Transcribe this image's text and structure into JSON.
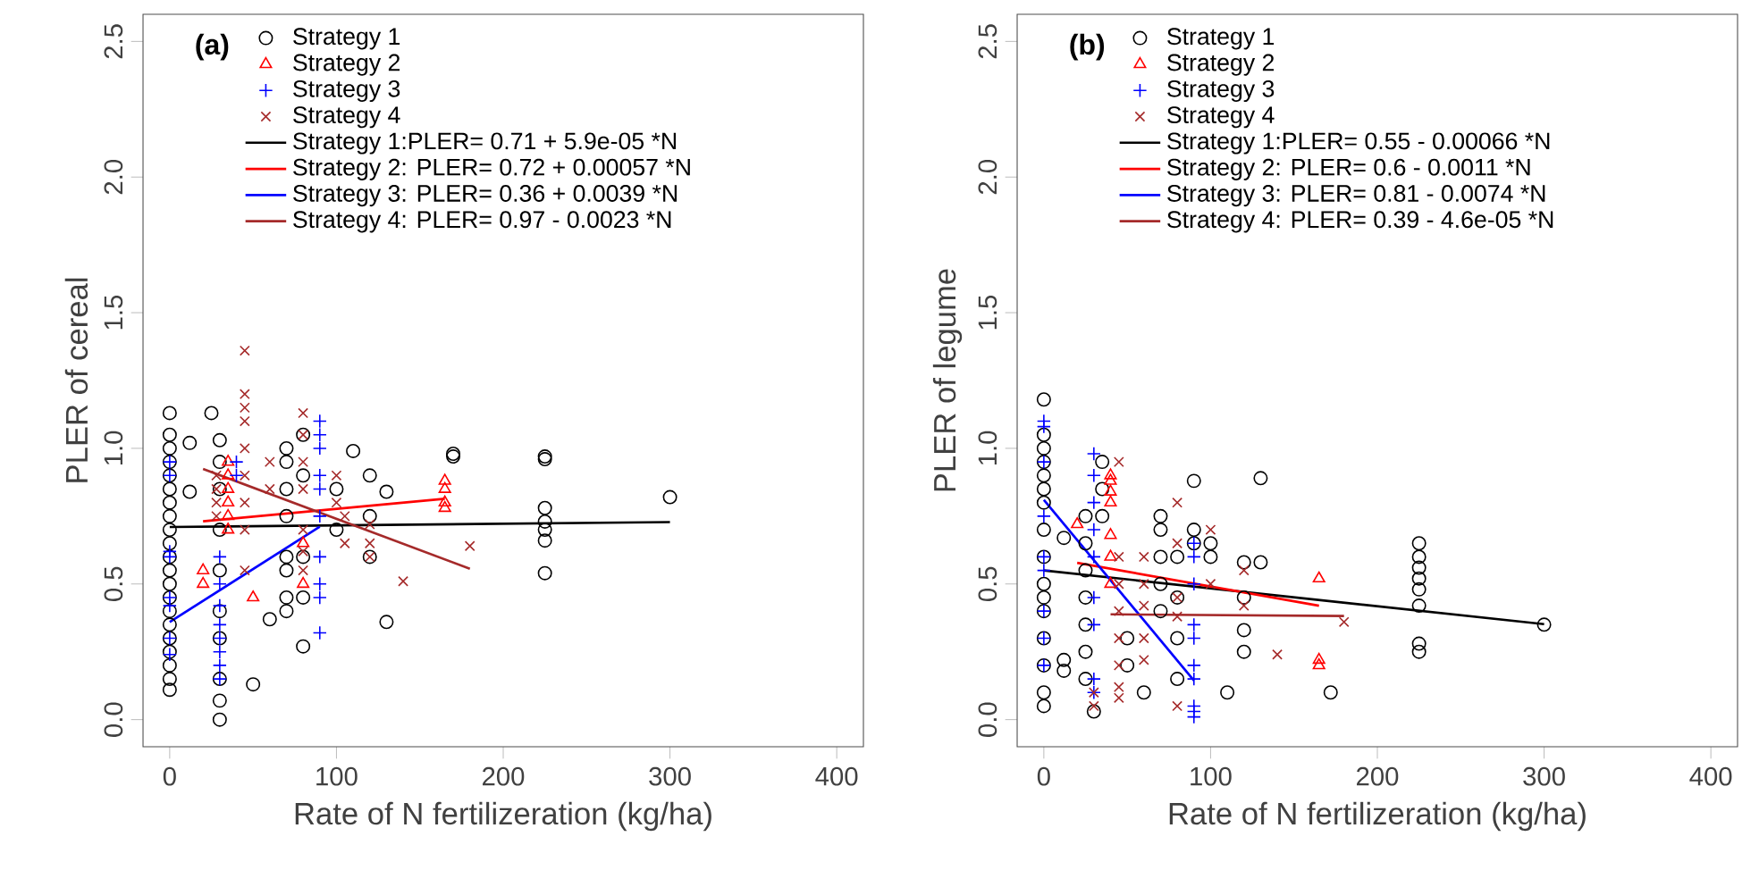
{
  "chart_data": [
    {
      "type": "scatter",
      "annotations": [
        "(a)"
      ],
      "xlabel": "Rate of N fertilizeration (kg/ha)",
      "ylabel": "PLER of cereal",
      "xlim": [
        -16,
        416
      ],
      "ylim": [
        -0.1,
        2.6
      ],
      "xticks": [
        0,
        100,
        200,
        300,
        400
      ],
      "yticks": [
        {
          "value": 0,
          "label": "0.0"
        },
        {
          "value": 0.5,
          "label": "0.5"
        },
        {
          "value": 1,
          "label": "1.0"
        },
        {
          "value": 1.5,
          "label": "1.5"
        },
        {
          "value": 2,
          "label": "2.0"
        },
        {
          "value": 2.5,
          "label": "2.5"
        }
      ],
      "legend": "top left",
      "series": [
        {
          "name": "Strategy 1",
          "type": "scatter",
          "marker": "circle",
          "color": "#000000",
          "x": [
            0,
            0,
            0,
            0,
            0,
            0,
            0,
            0,
            0,
            0,
            0,
            0,
            0,
            0,
            0,
            0,
            0,
            0,
            0,
            0,
            0,
            12,
            12,
            25,
            30,
            30,
            30,
            30,
            30,
            30,
            30,
            30,
            30,
            30,
            50,
            60,
            70,
            70,
            70,
            70,
            70,
            70,
            70,
            70,
            80,
            80,
            80,
            80,
            80,
            100,
            100,
            110,
            120,
            120,
            120,
            130,
            130,
            170,
            170,
            225,
            225,
            225,
            225,
            225,
            225,
            225,
            300
          ],
          "values": [
            1.13,
            1.05,
            1.0,
            0.95,
            0.9,
            0.85,
            0.8,
            0.75,
            0.7,
            0.65,
            0.6,
            0.55,
            0.5,
            0.45,
            0.4,
            0.35,
            0.3,
            0.25,
            0.2,
            0.15,
            0.11,
            1.02,
            0.84,
            1.13,
            1.03,
            0.95,
            0.85,
            0.7,
            0.55,
            0.4,
            0.3,
            0.15,
            0.07,
            0.0,
            0.13,
            0.37,
            1.0,
            0.95,
            0.85,
            0.75,
            0.6,
            0.55,
            0.45,
            0.4,
            1.05,
            0.9,
            0.6,
            0.45,
            0.27,
            0.85,
            0.7,
            0.99,
            0.9,
            0.75,
            0.6,
            0.84,
            0.36,
            0.98,
            0.97,
            0.97,
            0.96,
            0.78,
            0.73,
            0.7,
            0.66,
            0.54,
            0.82
          ]
        },
        {
          "name": "Strategy 2",
          "type": "scatter",
          "marker": "triangle",
          "color": "#ff0000",
          "x": [
            20,
            20,
            35,
            35,
            35,
            35,
            35,
            35,
            50,
            80,
            80,
            165,
            165,
            165,
            165
          ],
          "values": [
            0.55,
            0.5,
            0.95,
            0.9,
            0.85,
            0.8,
            0.75,
            0.7,
            0.45,
            0.5,
            0.65,
            0.88,
            0.85,
            0.8,
            0.78
          ]
        },
        {
          "name": "Strategy 3",
          "type": "scatter",
          "marker": "plus",
          "color": "#0000ff",
          "x": [
            0,
            0,
            0,
            0,
            0,
            0,
            0,
            0,
            30,
            30,
            30,
            30,
            30,
            30,
            30,
            30,
            40,
            40,
            90,
            90,
            90,
            90,
            90,
            90,
            90,
            90,
            90,
            90
          ],
          "values": [
            0.95,
            0.9,
            0.62,
            0.6,
            0.45,
            0.42,
            0.3,
            0.24,
            0.6,
            0.5,
            0.42,
            0.35,
            0.3,
            0.25,
            0.2,
            0.15,
            0.95,
            0.9,
            1.1,
            1.05,
            1.0,
            0.9,
            0.85,
            0.75,
            0.6,
            0.5,
            0.45,
            0.32
          ]
        },
        {
          "name": "Strategy 4",
          "type": "scatter",
          "marker": "cross",
          "color": "#a52a2a",
          "x": [
            28,
            28,
            28,
            28,
            45,
            45,
            45,
            45,
            45,
            45,
            45,
            45,
            45,
            60,
            60,
            80,
            80,
            80,
            80,
            80,
            80,
            80,
            100,
            100,
            105,
            105,
            120,
            120,
            120,
            140,
            180
          ],
          "values": [
            0.9,
            0.85,
            0.8,
            0.75,
            1.36,
            1.2,
            1.15,
            1.1,
            1.0,
            0.9,
            0.8,
            0.7,
            0.55,
            0.95,
            0.85,
            1.13,
            1.05,
            0.95,
            0.85,
            0.7,
            0.62,
            0.55,
            0.9,
            0.8,
            0.75,
            0.65,
            0.72,
            0.65,
            0.6,
            0.51,
            0.64
          ]
        },
        {
          "name": "Strategy 1:PLER= 0.71 + 5.9e-05 *N",
          "type": "line",
          "marker": "none",
          "color": "#000000",
          "x": [
            0,
            300
          ],
          "values": [
            0.71,
            0.728
          ]
        },
        {
          "name": "Strategy 2: PLER= 0.72 + 0.00057 *N",
          "type": "line",
          "marker": "none",
          "color": "#ff0000",
          "x": [
            20,
            165
          ],
          "values": [
            0.731,
            0.814
          ]
        },
        {
          "name": "Strategy 3: PLER= 0.36 + 0.0039 *N",
          "type": "line",
          "marker": "none",
          "color": "#0000ff",
          "x": [
            0,
            90
          ],
          "values": [
            0.36,
            0.711
          ]
        },
        {
          "name": "Strategy 4: PLER= 0.97 - 0.0023 *N",
          "type": "line",
          "marker": "none",
          "color": "#a52a2a",
          "x": [
            20,
            180
          ],
          "values": [
            0.924,
            0.556
          ]
        }
      ]
    },
    {
      "type": "scatter",
      "annotations": [
        "(b)"
      ],
      "xlabel": "Rate of N fertilizeration (kg/ha)",
      "ylabel": "PLER of legume",
      "xlim": [
        -16,
        416
      ],
      "ylim": [
        -0.1,
        2.6
      ],
      "xticks": [
        0,
        100,
        200,
        300,
        400
      ],
      "yticks": [
        {
          "value": 0,
          "label": "0.0"
        },
        {
          "value": 0.5,
          "label": "0.5"
        },
        {
          "value": 1,
          "label": "1.0"
        },
        {
          "value": 1.5,
          "label": "1.5"
        },
        {
          "value": 2,
          "label": "2.0"
        },
        {
          "value": 2.5,
          "label": "2.5"
        }
      ],
      "legend": "top left",
      "series": [
        {
          "name": "Strategy 1",
          "type": "scatter",
          "marker": "circle",
          "color": "#000000",
          "x": [
            0,
            0,
            0,
            0,
            0,
            0,
            0,
            0,
            0,
            0,
            0,
            0,
            0,
            0,
            0,
            0,
            12,
            12,
            12,
            25,
            25,
            25,
            25,
            25,
            25,
            25,
            30,
            35,
            35,
            35,
            50,
            50,
            60,
            70,
            70,
            70,
            70,
            70,
            80,
            80,
            80,
            80,
            90,
            90,
            90,
            100,
            100,
            110,
            120,
            120,
            120,
            120,
            130,
            130,
            172,
            225,
            225,
            225,
            225,
            225,
            225,
            225,
            225,
            300
          ],
          "values": [
            1.18,
            1.05,
            1.0,
            0.95,
            0.9,
            0.85,
            0.8,
            0.7,
            0.6,
            0.5,
            0.45,
            0.4,
            0.3,
            0.2,
            0.1,
            0.05,
            0.67,
            0.22,
            0.18,
            0.75,
            0.65,
            0.55,
            0.45,
            0.35,
            0.25,
            0.15,
            0.03,
            0.95,
            0.85,
            0.75,
            0.3,
            0.2,
            0.1,
            0.75,
            0.7,
            0.6,
            0.5,
            0.4,
            0.6,
            0.45,
            0.3,
            0.15,
            0.88,
            0.7,
            0.65,
            0.65,
            0.6,
            0.1,
            0.58,
            0.45,
            0.33,
            0.25,
            0.89,
            0.58,
            0.1,
            0.65,
            0.6,
            0.56,
            0.52,
            0.48,
            0.42,
            0.28,
            0.25,
            0.35
          ]
        },
        {
          "name": "Strategy 2",
          "type": "scatter",
          "marker": "triangle",
          "color": "#ff0000",
          "x": [
            20,
            40,
            40,
            40,
            40,
            40,
            40,
            40,
            165,
            165,
            165
          ],
          "values": [
            0.72,
            0.9,
            0.88,
            0.84,
            0.8,
            0.68,
            0.6,
            0.5,
            0.52,
            0.22,
            0.2
          ]
        },
        {
          "name": "Strategy 3",
          "type": "scatter",
          "marker": "plus",
          "color": "#0000ff",
          "x": [
            0,
            0,
            0,
            0,
            0,
            0,
            0,
            0,
            0,
            30,
            30,
            30,
            30,
            30,
            30,
            30,
            30,
            30,
            90,
            90,
            90,
            90,
            90,
            90,
            90,
            90,
            90,
            90
          ],
          "values": [
            1.1,
            1.08,
            0.95,
            0.75,
            0.6,
            0.55,
            0.4,
            0.3,
            0.2,
            0.98,
            0.9,
            0.8,
            0.7,
            0.6,
            0.45,
            0.35,
            0.15,
            0.1,
            0.65,
            0.6,
            0.5,
            0.35,
            0.3,
            0.2,
            0.15,
            0.05,
            0.03,
            0.01
          ]
        },
        {
          "name": "Strategy 4",
          "type": "scatter",
          "marker": "cross",
          "color": "#a52a2a",
          "x": [
            30,
            30,
            45,
            45,
            45,
            45,
            45,
            45,
            45,
            45,
            60,
            60,
            60,
            60,
            60,
            80,
            80,
            80,
            80,
            80,
            100,
            100,
            120,
            120,
            140,
            180
          ],
          "values": [
            0.1,
            0.05,
            0.95,
            0.6,
            0.5,
            0.4,
            0.3,
            0.2,
            0.12,
            0.08,
            0.6,
            0.5,
            0.42,
            0.3,
            0.22,
            0.8,
            0.65,
            0.45,
            0.38,
            0.05,
            0.7,
            0.5,
            0.55,
            0.42,
            0.24,
            0.36
          ]
        },
        {
          "name": "Strategy 1:PLER= 0.55 - 0.00066 *N",
          "type": "line",
          "marker": "none",
          "color": "#000000",
          "x": [
            0,
            300
          ],
          "values": [
            0.55,
            0.352
          ]
        },
        {
          "name": "Strategy 2: PLER= 0.6 - 0.0011 *N",
          "type": "line",
          "marker": "none",
          "color": "#ff0000",
          "x": [
            20,
            165
          ],
          "values": [
            0.578,
            0.42
          ]
        },
        {
          "name": "Strategy 3: PLER= 0.81 - 0.0074 *N",
          "type": "line",
          "marker": "none",
          "color": "#0000ff",
          "x": [
            0,
            90
          ],
          "values": [
            0.81,
            0.144
          ]
        },
        {
          "name": "Strategy 4: PLER= 0.39 - 4.6e-05 *N",
          "type": "line",
          "marker": "none",
          "color": "#a52a2a",
          "x": [
            40,
            180
          ],
          "values": [
            0.388,
            0.382
          ]
        }
      ]
    }
  ]
}
